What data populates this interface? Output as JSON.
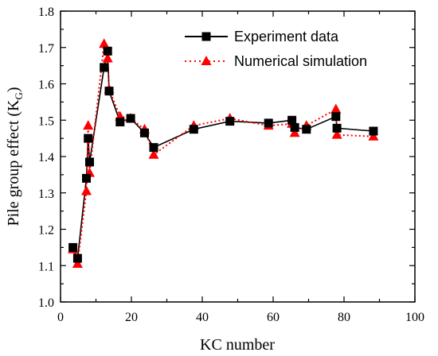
{
  "chart_data": {
    "type": "line",
    "xlabel": "KC number",
    "ylabel_main": "Pile group effect (K",
    "ylabel_sub": "G",
    "ylabel_close": ")",
    "xlim": [
      0,
      100
    ],
    "ylim": [
      1.0,
      1.8
    ],
    "xticks": [
      "0",
      "20",
      "40",
      "60",
      "80",
      "100"
    ],
    "yticks": [
      "1.0",
      "1.1",
      "1.2",
      "1.3",
      "1.4",
      "1.5",
      "1.6",
      "1.7",
      "1.8"
    ],
    "legend_position": "top-right",
    "series": [
      {
        "name": "Experiment data",
        "color": "#000000",
        "marker": "square",
        "line": "solid",
        "x": [
          3.5,
          4.8,
          7.3,
          7.8,
          8.2,
          12.3,
          13.3,
          13.7,
          16.8,
          19.8,
          23.7,
          26.3,
          37.6,
          47.8,
          58.7,
          65.3,
          66.1,
          69.4,
          77.7,
          78.0,
          88.3
        ],
        "y": [
          1.15,
          1.12,
          1.34,
          1.45,
          1.385,
          1.645,
          1.69,
          1.58,
          1.495,
          1.505,
          1.465,
          1.425,
          1.475,
          1.497,
          1.492,
          1.5,
          1.48,
          1.475,
          1.51,
          1.478,
          1.47
        ]
      },
      {
        "name": "Numerical simulation",
        "color": "#ff0000",
        "marker": "triangle",
        "line": "dotted",
        "x": [
          3.5,
          4.8,
          7.3,
          7.8,
          8.2,
          12.3,
          13.3,
          13.7,
          16.8,
          19.8,
          23.7,
          26.3,
          37.6,
          47.8,
          58.7,
          65.3,
          66.1,
          69.4,
          77.7,
          78.0,
          88.3
        ],
        "y": [
          1.145,
          1.105,
          1.305,
          1.485,
          1.355,
          1.71,
          1.67,
          1.585,
          1.51,
          1.505,
          1.475,
          1.405,
          1.485,
          1.505,
          1.485,
          1.49,
          1.465,
          1.485,
          1.53,
          1.46,
          1.455
        ]
      }
    ]
  }
}
